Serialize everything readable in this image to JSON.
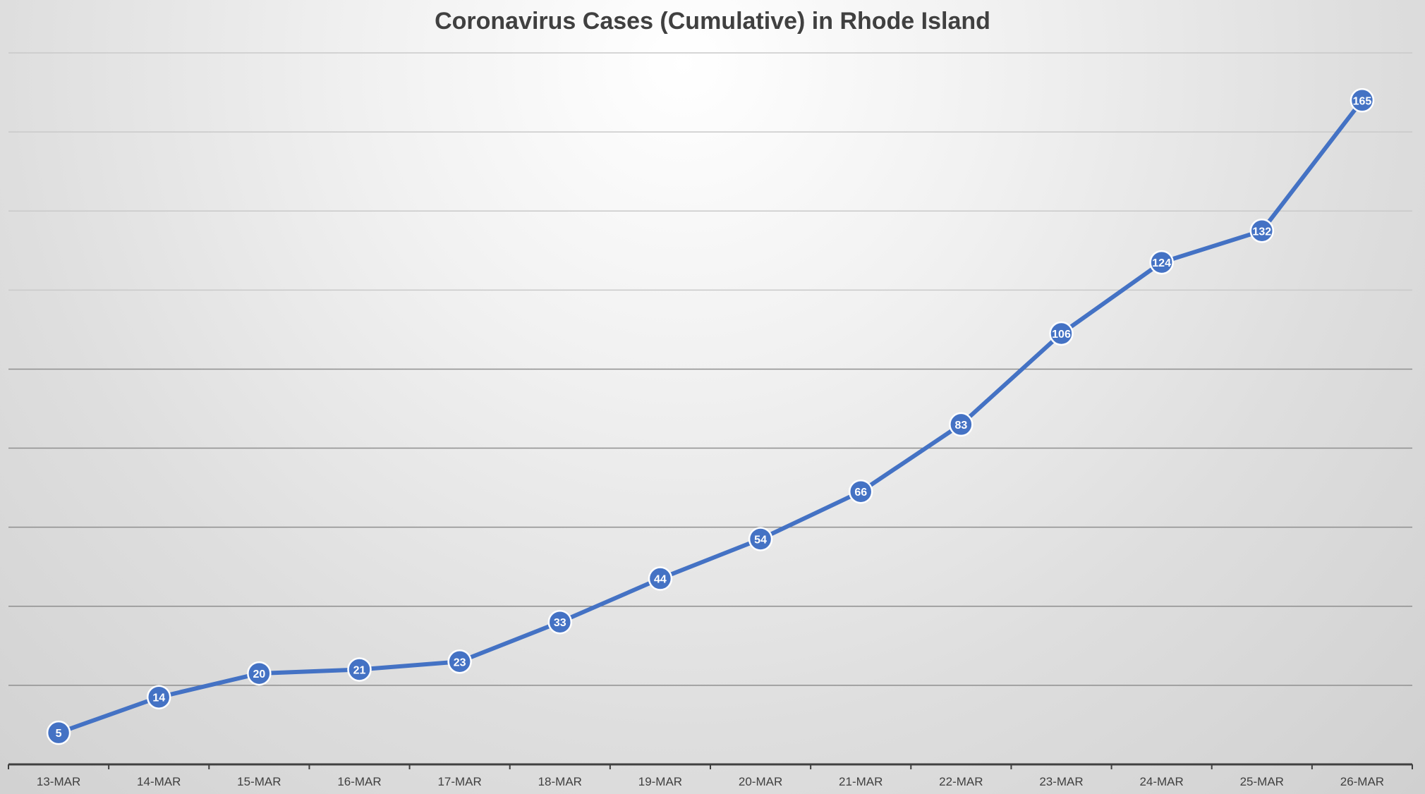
{
  "chart_data": {
    "type": "line",
    "title": "Coronavirus Cases (Cumulative) in Rhode Island",
    "xlabel": "",
    "ylabel": "",
    "categories": [
      "13-MAR",
      "14-MAR",
      "15-MAR",
      "16-MAR",
      "17-MAR",
      "18-MAR",
      "19-MAR",
      "20-MAR",
      "21-MAR",
      "22-MAR",
      "23-MAR",
      "24-MAR",
      "25-MAR",
      "26-MAR"
    ],
    "series": [
      {
        "values": [
          5,
          14,
          20,
          21,
          23,
          33,
          44,
          54,
          66,
          83,
          106,
          124,
          132,
          165
        ]
      }
    ],
    "ylim": [
      -3,
      177
    ],
    "y_gridlines": [
      17,
      37,
      57,
      77,
      97,
      117,
      137,
      157,
      177
    ],
    "grid": true,
    "data_labels": true,
    "legend": "none",
    "colors": {
      "series": "#4472c4",
      "title": "#404040",
      "axis": "#404040"
    }
  }
}
